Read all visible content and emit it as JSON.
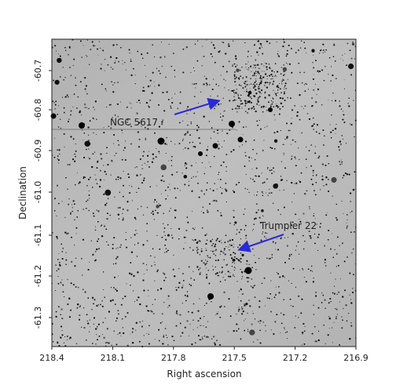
{
  "image": {
    "xlabel": "Right ascension",
    "ylabel": "Declination",
    "x_ticks": [
      "218.4",
      "218.1",
      "217.8",
      "217.5",
      "217.2",
      "216.9"
    ],
    "y_ticks": [
      "-60.7",
      "-60.8",
      "-60.9",
      "-61.0",
      "-61.1",
      "-61.2",
      "-61.3"
    ],
    "annotations": [
      {
        "id": "ngc5617",
        "text": "NGC 5617"
      },
      {
        "id": "trumpler22",
        "text": "Trumpler 22"
      }
    ],
    "colors": {
      "arrow": "#2a2ad6",
      "sky_background": "#b9b9b9",
      "stars": "#111111"
    }
  }
}
